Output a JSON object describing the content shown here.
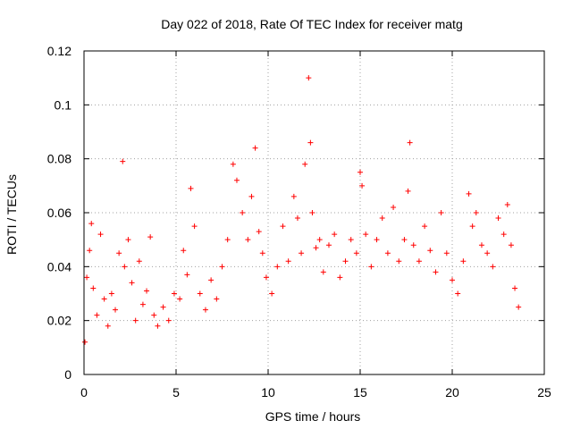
{
  "chart_data": {
    "type": "scatter",
    "title": "Day 022 of 2018, Rate Of TEC Index for receiver matg",
    "xlabel": "GPS time / hours",
    "ylabel": "ROTI / TECUs",
    "xlim": [
      0,
      25
    ],
    "ylim": [
      0,
      0.12
    ],
    "xticks": [
      0,
      5,
      10,
      15,
      20,
      25
    ],
    "xtick_labels": [
      "0",
      "5",
      "10",
      "15",
      "20",
      "25"
    ],
    "yticks": [
      0,
      0.02,
      0.04,
      0.06,
      0.08,
      0.1,
      0.12
    ],
    "ytick_labels": [
      "0",
      "0.02",
      "0.04",
      "0.06",
      "0.08",
      "0.1",
      "0.12"
    ],
    "grid": true,
    "marker": "+",
    "series": [
      {
        "name": "ROTI",
        "color": "#ff0000",
        "x": [
          0.05,
          0.15,
          0.3,
          0.4,
          0.5,
          0.7,
          0.9,
          1.1,
          1.3,
          1.5,
          1.7,
          1.9,
          2.1,
          2.2,
          2.4,
          2.6,
          2.8,
          3.0,
          3.2,
          3.4,
          3.6,
          3.8,
          4.0,
          4.3,
          4.6,
          4.9,
          5.2,
          5.4,
          5.6,
          5.8,
          6.0,
          6.3,
          6.6,
          6.9,
          7.2,
          7.5,
          7.8,
          8.1,
          8.3,
          8.6,
          8.9,
          9.1,
          9.3,
          9.5,
          9.7,
          9.9,
          10.2,
          10.5,
          10.8,
          11.1,
          11.4,
          11.6,
          11.8,
          12.0,
          12.2,
          12.3,
          12.4,
          12.6,
          12.8,
          13.0,
          13.3,
          13.6,
          13.9,
          14.2,
          14.5,
          14.8,
          15.0,
          15.1,
          15.3,
          15.6,
          15.9,
          16.2,
          16.5,
          16.8,
          17.1,
          17.4,
          17.6,
          17.7,
          17.9,
          18.2,
          18.5,
          18.8,
          19.1,
          19.4,
          19.7,
          20.0,
          20.3,
          20.6,
          20.9,
          21.1,
          21.3,
          21.6,
          21.9,
          22.2,
          22.5,
          22.8,
          23.0,
          23.2,
          23.4,
          23.6
        ],
        "y": [
          0.012,
          0.036,
          0.046,
          0.056,
          0.032,
          0.022,
          0.052,
          0.028,
          0.018,
          0.03,
          0.024,
          0.045,
          0.079,
          0.04,
          0.05,
          0.034,
          0.02,
          0.042,
          0.026,
          0.031,
          0.051,
          0.022,
          0.018,
          0.025,
          0.02,
          0.03,
          0.028,
          0.046,
          0.037,
          0.069,
          0.055,
          0.03,
          0.024,
          0.035,
          0.028,
          0.04,
          0.05,
          0.078,
          0.072,
          0.06,
          0.05,
          0.066,
          0.084,
          0.053,
          0.045,
          0.036,
          0.03,
          0.04,
          0.055,
          0.042,
          0.066,
          0.058,
          0.045,
          0.078,
          0.11,
          0.086,
          0.06,
          0.047,
          0.05,
          0.038,
          0.048,
          0.052,
          0.036,
          0.042,
          0.05,
          0.045,
          0.075,
          0.07,
          0.052,
          0.04,
          0.05,
          0.058,
          0.045,
          0.062,
          0.042,
          0.05,
          0.068,
          0.086,
          0.048,
          0.042,
          0.055,
          0.046,
          0.038,
          0.06,
          0.045,
          0.035,
          0.03,
          0.042,
          0.067,
          0.055,
          0.06,
          0.048,
          0.045,
          0.04,
          0.058,
          0.052,
          0.063,
          0.048,
          0.032,
          0.025
        ]
      }
    ]
  }
}
